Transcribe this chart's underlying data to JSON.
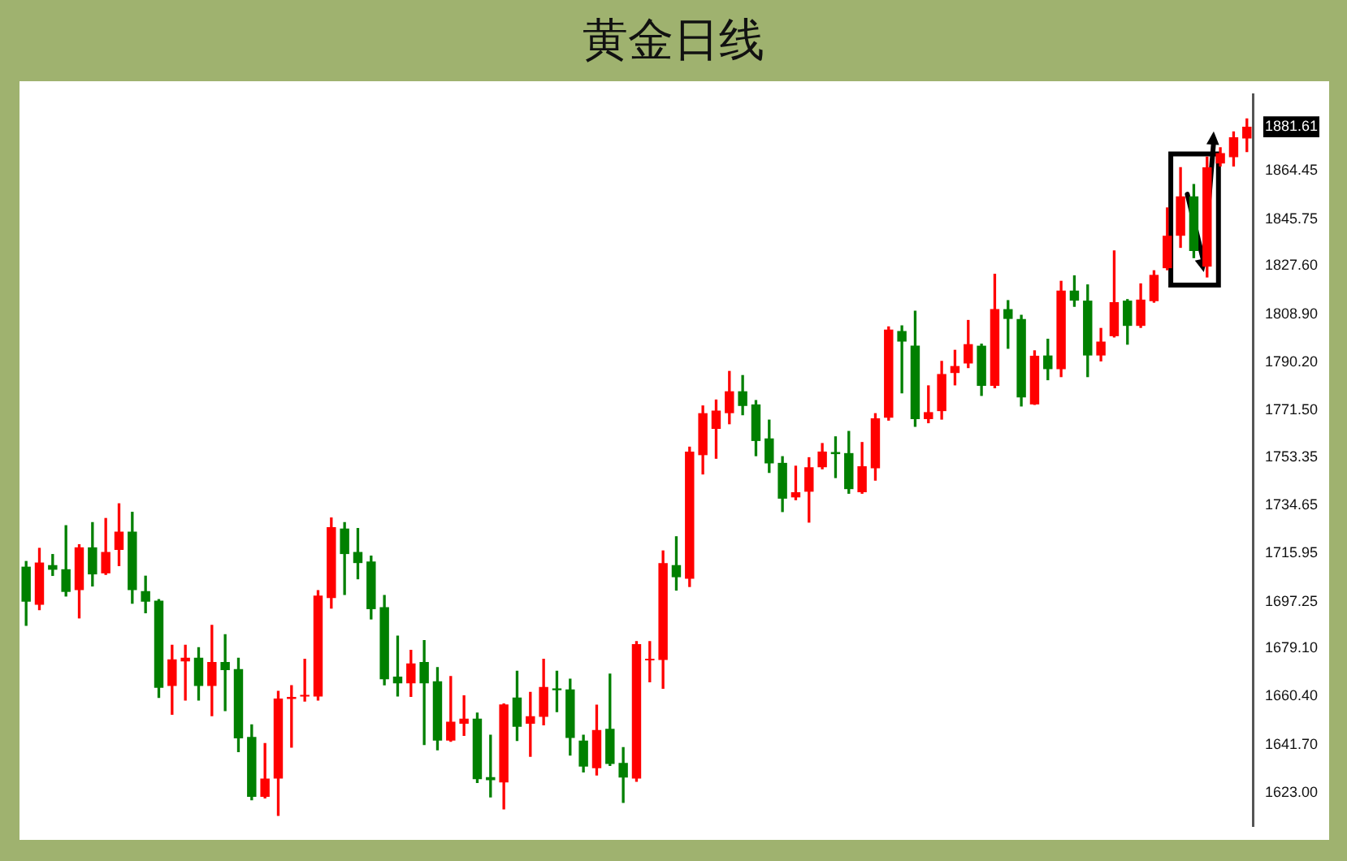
{
  "chart_data": {
    "type": "candlestick",
    "title": "黄金日线",
    "categories": [
      null,
      null,
      null,
      null,
      null,
      null,
      null,
      null,
      null,
      null,
      null,
      null,
      null,
      null,
      null,
      null,
      null,
      null,
      null,
      null,
      null,
      null,
      null,
      null,
      null,
      null,
      null,
      null,
      null,
      null,
      null,
      null,
      null,
      null,
      null,
      null,
      null,
      null,
      null,
      null,
      null,
      null,
      null,
      null,
      null,
      null,
      null,
      null,
      null,
      null,
      null,
      null,
      null,
      null,
      null,
      null,
      null,
      null,
      null,
      null,
      null,
      null,
      null,
      null,
      null,
      null,
      null,
      null,
      null,
      null,
      null,
      null,
      null,
      null,
      null,
      null,
      null,
      null,
      null,
      null,
      null,
      null,
      null,
      null,
      null,
      null,
      null,
      null,
      null,
      null,
      null,
      null,
      null
    ],
    "ohlc": [
      [
        1710.8,
        1712.8,
        1688.0,
        1697.2
      ],
      [
        1696.0,
        1717.9,
        1694.1,
        1712.4
      ],
      [
        1711.4,
        1715.5,
        1707.4,
        1709.6
      ],
      [
        1709.8,
        1726.7,
        1699.4,
        1701.0
      ],
      [
        1701.7,
        1719.3,
        1690.9,
        1718.3
      ],
      [
        1718.3,
        1727.9,
        1703.3,
        1707.8
      ],
      [
        1708.2,
        1729.5,
        1707.8,
        1716.5
      ],
      [
        1717.3,
        1735.2,
        1711.2,
        1724.4
      ],
      [
        1724.4,
        1731.9,
        1696.6,
        1701.7
      ],
      [
        1701.3,
        1707.1,
        1692.9,
        1697.2
      ],
      [
        1697.6,
        1698.0,
        1660.0,
        1663.8
      ],
      [
        1664.5,
        1680.3,
        1653.5,
        1674.8
      ],
      [
        1674.0,
        1680.3,
        1659.0,
        1675.4
      ],
      [
        1675.4,
        1679.3,
        1659.0,
        1664.5
      ],
      [
        1664.5,
        1688.0,
        1652.9,
        1673.8
      ],
      [
        1673.8,
        1684.4,
        1654.9,
        1670.6
      ],
      [
        1671.0,
        1675.2,
        1639.0,
        1644.1
      ],
      [
        1644.7,
        1649.4,
        1620.3,
        1621.4
      ],
      [
        1621.4,
        1642.1,
        1621.0,
        1628.5
      ],
      [
        1628.5,
        1662.4,
        1614.2,
        1659.6
      ],
      [
        1659.4,
        1664.6,
        1640.7,
        1660.2
      ],
      [
        1660.4,
        1674.8,
        1658.6,
        1660.8
      ],
      [
        1660.4,
        1701.5,
        1659.0,
        1699.6
      ],
      [
        1698.6,
        1729.7,
        1694.7,
        1726.1
      ],
      [
        1725.6,
        1727.9,
        1700.0,
        1715.7
      ],
      [
        1716.5,
        1725.6,
        1706.1,
        1712.2
      ],
      [
        1712.8,
        1714.9,
        1690.5,
        1694.3
      ],
      [
        1695.1,
        1699.6,
        1664.9,
        1667.1
      ],
      [
        1668.1,
        1683.8,
        1660.6,
        1665.5
      ],
      [
        1665.5,
        1678.3,
        1660.4,
        1673.2
      ],
      [
        1673.8,
        1682.1,
        1641.7,
        1665.5
      ],
      [
        1666.3,
        1671.6,
        1639.7,
        1643.3
      ],
      [
        1643.3,
        1668.1,
        1643.0,
        1650.6
      ],
      [
        1649.8,
        1660.6,
        1645.3,
        1651.8
      ],
      [
        1651.8,
        1653.9,
        1627.0,
        1628.3
      ],
      [
        1629.1,
        1645.3,
        1621.4,
        1627.9
      ],
      [
        1627.0,
        1657.5,
        1616.7,
        1657.3
      ],
      [
        1660.0,
        1670.2,
        1643.3,
        1648.6
      ],
      [
        1649.8,
        1662.0,
        1637.2,
        1652.7
      ],
      [
        1652.5,
        1674.8,
        1649.4,
        1664.1
      ],
      [
        1663.5,
        1670.2,
        1654.5,
        1662.8
      ],
      [
        1663.1,
        1667.1,
        1637.6,
        1644.3
      ],
      [
        1643.3,
        1645.3,
        1631.1,
        1633.2
      ],
      [
        1632.5,
        1657.0,
        1629.9,
        1647.4
      ],
      [
        1647.8,
        1669.1,
        1633.6,
        1634.2
      ],
      [
        1634.6,
        1640.5,
        1619.3,
        1628.9
      ],
      [
        1628.5,
        1681.7,
        1627.5,
        1680.7
      ],
      [
        1674.4,
        1681.7,
        1666.1,
        1674.8
      ],
      [
        1674.6,
        1716.9,
        1663.6,
        1712.2
      ],
      [
        1711.4,
        1722.4,
        1701.7,
        1706.7
      ],
      [
        1706.1,
        1757.2,
        1703.1,
        1755.5
      ],
      [
        1754.1,
        1773.2,
        1746.8,
        1770.4
      ],
      [
        1764.3,
        1775.5,
        1752.9,
        1771.4
      ],
      [
        1770.4,
        1786.6,
        1766.3,
        1778.9
      ],
      [
        1778.9,
        1785.0,
        1769.8,
        1773.2
      ],
      [
        1773.8,
        1775.3,
        1753.9,
        1759.6
      ],
      [
        1760.6,
        1767.7,
        1747.4,
        1750.9
      ],
      [
        1751.1,
        1753.5,
        1732.2,
        1737.2
      ],
      [
        1737.7,
        1749.8,
        1736.8,
        1739.7
      ],
      [
        1739.9,
        1753.1,
        1728.1,
        1749.4
      ],
      [
        1749.4,
        1758.6,
        1748.8,
        1755.5
      ],
      [
        1755.3,
        1761.2,
        1745.4,
        1754.5
      ],
      [
        1754.9,
        1763.3,
        1739.3,
        1740.9
      ],
      [
        1739.7,
        1759.0,
        1739.3,
        1749.8
      ],
      [
        1749.0,
        1770.2,
        1744.4,
        1768.4
      ],
      [
        1768.6,
        1803.9,
        1767.7,
        1802.9
      ],
      [
        1802.3,
        1804.3,
        1778.3,
        1798.2
      ],
      [
        1796.6,
        1810.0,
        1765.3,
        1768.1
      ],
      [
        1768.1,
        1781.0,
        1766.7,
        1770.8
      ],
      [
        1771.2,
        1790.5,
        1768.1,
        1785.6
      ],
      [
        1786.0,
        1794.8,
        1781.4,
        1788.7
      ],
      [
        1789.7,
        1806.4,
        1788.1,
        1797.2
      ],
      [
        1796.6,
        1797.2,
        1777.3,
        1781.0
      ],
      [
        1781.0,
        1824.3,
        1780.3,
        1810.8
      ],
      [
        1810.8,
        1814.1,
        1795.6,
        1807.0
      ],
      [
        1807.0,
        1808.4,
        1773.2,
        1776.5
      ],
      [
        1773.8,
        1794.6,
        1773.8,
        1792.7
      ],
      [
        1792.8,
        1799.1,
        1783.4,
        1787.5
      ],
      [
        1787.5,
        1821.6,
        1784.6,
        1818.0
      ],
      [
        1818.0,
        1823.7,
        1811.9,
        1814.1
      ],
      [
        1814.1,
        1820.2,
        1784.6,
        1792.8
      ],
      [
        1792.8,
        1803.3,
        1790.7,
        1798.2
      ],
      [
        1800.3,
        1833.4,
        1800.0,
        1813.5
      ],
      [
        1814.1,
        1814.5,
        1797.2,
        1804.3
      ],
      [
        1804.3,
        1820.6,
        1803.7,
        1814.5
      ],
      [
        1813.9,
        1825.7,
        1813.5,
        1824.1
      ],
      [
        1826.7,
        1850.1,
        1826.1,
        1839.3
      ],
      [
        1839.3,
        1865.7,
        1834.8,
        1854.6
      ],
      [
        1854.6,
        1859.2,
        1830.8,
        1833.4
      ],
      [
        1827.3,
        1869.8,
        1823.3,
        1865.9
      ],
      [
        1867.4,
        1873.5,
        1866.4,
        1871.4
      ],
      [
        1869.8,
        1879.6,
        1866.4,
        1877.5
      ],
      [
        1877.1,
        1884.7,
        1872.0,
        1881.6
      ]
    ],
    "colors": [
      "#008000",
      "#ff0000",
      "#008000",
      "#008000",
      "#ff0000",
      "#008000",
      "#ff0000",
      "#ff0000",
      "#008000",
      "#008000",
      "#008000",
      "#ff0000",
      "#ff0000",
      "#008000",
      "#ff0000",
      "#008000",
      "#008000",
      "#008000",
      "#ff0000",
      "#ff0000",
      "#ff0000",
      "#ff0000",
      "#ff0000",
      "#ff0000",
      "#008000",
      "#008000",
      "#008000",
      "#008000",
      "#008000",
      "#ff0000",
      "#008000",
      "#008000",
      "#ff0000",
      "#ff0000",
      "#008000",
      "#008000",
      "#ff0000",
      "#008000",
      "#ff0000",
      "#ff0000",
      "#008000",
      "#008000",
      "#008000",
      "#ff0000",
      "#008000",
      "#008000",
      "#ff0000",
      "#ff0000",
      "#ff0000",
      "#008000",
      "#ff0000",
      "#ff0000",
      "#ff0000",
      "#ff0000",
      "#008000",
      "#008000",
      "#008000",
      "#008000",
      "#ff0000",
      "#ff0000",
      "#ff0000",
      "#008000",
      "#008000",
      "#ff0000",
      "#ff0000",
      "#ff0000",
      "#008000",
      "#008000",
      "#ff0000",
      "#ff0000",
      "#ff0000",
      "#ff0000",
      "#008000",
      "#ff0000",
      "#008000",
      "#008000",
      "#ff0000",
      "#008000",
      "#ff0000",
      "#008000",
      "#008000",
      "#ff0000",
      "#ff0000",
      "#008000",
      "#ff0000",
      "#ff0000",
      "#ff0000",
      "#ff0000",
      "#008000",
      "#ff0000",
      "#ff0000",
      "#ff0000",
      "#ff0000"
    ],
    "ylim": [
      1610,
      1894
    ],
    "yticks": [
      {
        "value": 1623.0,
        "label": "1623.00"
      },
      {
        "value": 1641.7,
        "label": "1641.70"
      },
      {
        "value": 1660.4,
        "label": "1660.40"
      },
      {
        "value": 1679.1,
        "label": "1679.10"
      },
      {
        "value": 1697.25,
        "label": "1697.25"
      },
      1715.95,
      {
        "value": 1734.65,
        "label": "1734.65"
      },
      {
        "value": 1753.35,
        "label": "1753.35"
      },
      {
        "value": 1771.5,
        "label": "1771.50"
      },
      {
        "value": 1790.2,
        "label": "1790.20"
      },
      {
        "value": 1808.9,
        "label": "1808.90"
      },
      {
        "value": 1827.6,
        "label": "1827.60"
      },
      {
        "value": 1845.75,
        "label": "1845.75"
      },
      {
        "value": 1864.45,
        "label": "1864.45"
      },
      1881.61
    ],
    "grid": false,
    "legend": false,
    "tick_labels": "y"
  }
}
